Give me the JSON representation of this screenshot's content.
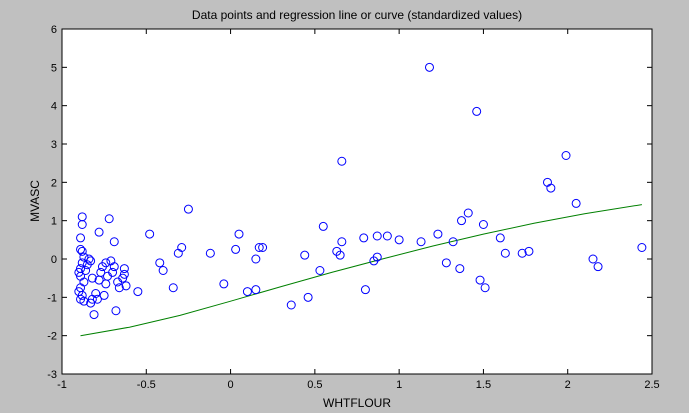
{
  "chart_data": {
    "type": "scatter",
    "title": "Data points and regression line or curve (standardized values)",
    "xlabel": "WHTFLOUR",
    "ylabel": "MVASC",
    "xlim": [
      -1,
      2.5
    ],
    "ylim": [
      -3,
      6
    ],
    "xticks": [
      "-1",
      "-0.5",
      "0",
      "0.5",
      "1",
      "1.5",
      "2",
      "2.5"
    ],
    "yticks": [
      "-3",
      "-2",
      "-1",
      "0",
      "1",
      "2",
      "3",
      "4",
      "5",
      "6"
    ],
    "grid": false,
    "colors": {
      "points": "#0000ff",
      "curve": "#008000",
      "plot_bg": "#ffffff",
      "figure_bg": "#c0c0c0"
    },
    "points": [
      [
        -0.89,
        0.55
      ],
      [
        -0.88,
        1.1
      ],
      [
        -0.88,
        0.9
      ],
      [
        -0.89,
        0.25
      ],
      [
        -0.88,
        0.2
      ],
      [
        -0.87,
        0.05
      ],
      [
        -0.88,
        -0.1
      ],
      [
        -0.89,
        -0.25
      ],
      [
        -0.9,
        -0.35
      ],
      [
        -0.89,
        -0.45
      ],
      [
        -0.87,
        -0.6
      ],
      [
        -0.89,
        -0.75
      ],
      [
        -0.9,
        -0.85
      ],
      [
        -0.88,
        -0.95
      ],
      [
        -0.89,
        -1.05
      ],
      [
        -0.87,
        -1.1
      ],
      [
        -0.86,
        -0.3
      ],
      [
        -0.85,
        -0.15
      ],
      [
        -0.84,
        0.0
      ],
      [
        -0.83,
        -0.05
      ],
      [
        -0.82,
        -0.5
      ],
      [
        -0.8,
        -0.9
      ],
      [
        -0.82,
        -1.05
      ],
      [
        -0.83,
        -1.15
      ],
      [
        -0.81,
        -1.45
      ],
      [
        -0.79,
        -1.05
      ],
      [
        -0.78,
        -0.55
      ],
      [
        -0.77,
        -0.35
      ],
      [
        -0.78,
        0.7
      ],
      [
        -0.76,
        -0.2
      ],
      [
        -0.75,
        -0.95
      ],
      [
        -0.74,
        -0.65
      ],
      [
        -0.73,
        -0.45
      ],
      [
        -0.74,
        -0.1
      ],
      [
        -0.72,
        1.05
      ],
      [
        -0.71,
        -0.05
      ],
      [
        -0.7,
        -0.35
      ],
      [
        -0.69,
        -0.2
      ],
      [
        -0.69,
        0.45
      ],
      [
        -0.68,
        -1.35
      ],
      [
        -0.67,
        -0.6
      ],
      [
        -0.66,
        -0.75
      ],
      [
        -0.64,
        -0.5
      ],
      [
        -0.63,
        -0.4
      ],
      [
        -0.63,
        -0.25
      ],
      [
        -0.62,
        -0.7
      ],
      [
        -0.55,
        -0.85
      ],
      [
        -0.48,
        0.65
      ],
      [
        -0.42,
        -0.1
      ],
      [
        -0.4,
        -0.3
      ],
      [
        -0.34,
        -0.75
      ],
      [
        -0.31,
        0.15
      ],
      [
        -0.29,
        0.3
      ],
      [
        -0.25,
        1.3
      ],
      [
        -0.12,
        0.15
      ],
      [
        -0.04,
        -0.65
      ],
      [
        0.03,
        0.25
      ],
      [
        0.05,
        0.65
      ],
      [
        0.1,
        -0.85
      ],
      [
        0.15,
        -0.8
      ],
      [
        0.15,
        0.0
      ],
      [
        0.17,
        0.3
      ],
      [
        0.19,
        0.3
      ],
      [
        0.36,
        -1.2
      ],
      [
        0.44,
        0.1
      ],
      [
        0.46,
        -1.0
      ],
      [
        0.53,
        -0.3
      ],
      [
        0.55,
        0.85
      ],
      [
        0.63,
        0.2
      ],
      [
        0.66,
        2.55
      ],
      [
        0.66,
        0.45
      ],
      [
        0.65,
        0.1
      ],
      [
        0.79,
        0.55
      ],
      [
        0.8,
        -0.8
      ],
      [
        0.85,
        -0.05
      ],
      [
        0.87,
        0.05
      ],
      [
        0.87,
        0.6
      ],
      [
        0.93,
        0.6
      ],
      [
        1.0,
        0.5
      ],
      [
        1.13,
        0.45
      ],
      [
        1.18,
        5.0
      ],
      [
        1.23,
        0.65
      ],
      [
        1.28,
        -0.1
      ],
      [
        1.32,
        0.45
      ],
      [
        1.36,
        -0.25
      ],
      [
        1.37,
        1.0
      ],
      [
        1.41,
        1.2
      ],
      [
        1.46,
        3.85
      ],
      [
        1.48,
        -0.55
      ],
      [
        1.5,
        0.9
      ],
      [
        1.51,
        -0.75
      ],
      [
        1.6,
        0.55
      ],
      [
        1.63,
        0.15
      ],
      [
        1.73,
        0.15
      ],
      [
        1.77,
        0.2
      ],
      [
        1.88,
        2.0
      ],
      [
        1.9,
        1.85
      ],
      [
        1.99,
        2.7
      ],
      [
        2.05,
        1.45
      ],
      [
        2.15,
        0.0
      ],
      [
        2.18,
        -0.2
      ],
      [
        2.44,
        0.3
      ]
    ],
    "curve": [
      [
        -0.89,
        -2.0
      ],
      [
        -0.6,
        -1.78
      ],
      [
        -0.3,
        -1.47
      ],
      [
        0.0,
        -1.1
      ],
      [
        0.3,
        -0.72
      ],
      [
        0.6,
        -0.35
      ],
      [
        0.9,
        0.0
      ],
      [
        1.2,
        0.34
      ],
      [
        1.5,
        0.65
      ],
      [
        1.8,
        0.93
      ],
      [
        2.1,
        1.18
      ],
      [
        2.44,
        1.42
      ]
    ]
  }
}
